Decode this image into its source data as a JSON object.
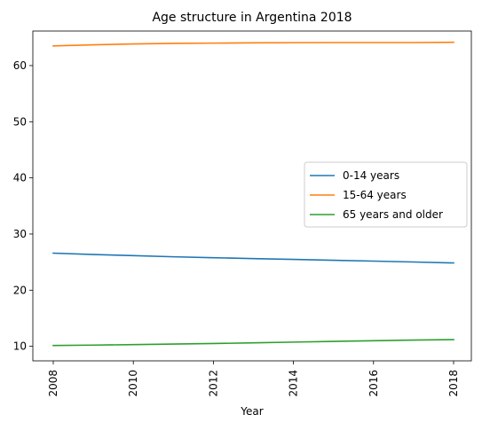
{
  "chart_data": {
    "type": "line",
    "title": "Age structure in Argentina 2018",
    "xlabel": "Year",
    "ylabel": "",
    "x": [
      2008,
      2009,
      2010,
      2011,
      2012,
      2013,
      2014,
      2015,
      2016,
      2017,
      2018
    ],
    "xlim": [
      2008,
      2018
    ],
    "ylim": [
      10.1,
      64.1
    ],
    "xticks": [
      2008,
      2010,
      2012,
      2014,
      2016,
      2018
    ],
    "yticks": [
      10,
      20,
      30,
      40,
      50,
      60
    ],
    "grid": false,
    "legend_position": "center-right",
    "series": [
      {
        "name": "0-14 years",
        "color": "#1f77b4",
        "values": [
          26.6,
          26.35,
          26.15,
          25.95,
          25.78,
          25.63,
          25.48,
          25.33,
          25.18,
          25.02,
          24.85
        ]
      },
      {
        "name": "15-64 years",
        "color": "#ff7f0e",
        "values": [
          63.5,
          63.7,
          63.85,
          63.95,
          64.0,
          64.05,
          64.08,
          64.1,
          64.1,
          64.1,
          64.15
        ]
      },
      {
        "name": "65 years and older",
        "color": "#2ca02c",
        "values": [
          10.15,
          10.22,
          10.3,
          10.4,
          10.5,
          10.62,
          10.75,
          10.88,
          11.0,
          11.12,
          11.2
        ]
      }
    ]
  }
}
